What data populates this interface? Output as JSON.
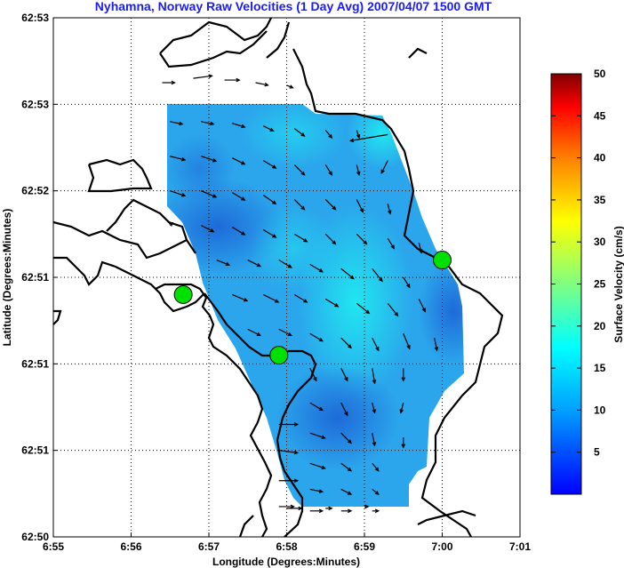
{
  "chart_data": {
    "type": "heatmap",
    "title": "Nyhamna, Norway Raw Velocities (1 Day Avg) 2007/04/07 1500 GMT",
    "xlabel": "Longitude (Degrees:Minutes)",
    "ylabel": "Latitude (Degrees:Minutes)",
    "x_ticks": [
      "6:55",
      "6:56",
      "6:57",
      "6:58",
      "6:59",
      "7:00",
      "7:01"
    ],
    "y_ticks": [
      "62:53",
      "62:53",
      "62:52",
      "62:51",
      "62:51",
      "62:51",
      "62:50"
    ],
    "xlim": [
      0,
      6
    ],
    "ylim": [
      0,
      6
    ],
    "grid": true,
    "colorbar": {
      "label": "Surface Velocity (cm/s)",
      "ticks": [
        5,
        10,
        15,
        20,
        25,
        30,
        35,
        40,
        45,
        50
      ],
      "range": [
        0,
        50
      ],
      "colormap": "jet"
    },
    "site_markers": [
      {
        "x": 1.67,
        "y": 2.8
      },
      {
        "x": 2.9,
        "y": 2.1
      },
      {
        "x": 5.0,
        "y": 3.2
      }
    ],
    "vectors": [
      {
        "x": 1.4,
        "y": 5.25,
        "u": 0.1,
        "v": 0
      },
      {
        "x": 1.8,
        "y": 5.3,
        "u": 0.15,
        "v": 0.02
      },
      {
        "x": 2.2,
        "y": 5.28,
        "u": 0.12,
        "v": 0
      },
      {
        "x": 2.6,
        "y": 5.25,
        "u": 0.1,
        "v": -0.02
      },
      {
        "x": 3.0,
        "y": 5.22,
        "u": 0.05,
        "v": -0.02
      },
      {
        "x": 1.5,
        "y": 4.8,
        "u": 0.1,
        "v": -0.02
      },
      {
        "x": 1.9,
        "y": 4.8,
        "u": 0.1,
        "v": -0.02
      },
      {
        "x": 2.3,
        "y": 4.78,
        "u": 0.1,
        "v": -0.03
      },
      {
        "x": 2.7,
        "y": 4.75,
        "u": 0.08,
        "v": -0.04
      },
      {
        "x": 3.1,
        "y": 4.72,
        "u": 0.08,
        "v": -0.06
      },
      {
        "x": 3.5,
        "y": 4.7,
        "u": 0.05,
        "v": -0.06
      },
      {
        "x": 3.9,
        "y": 4.7,
        "u": 0.02,
        "v": -0.06
      },
      {
        "x": 4.3,
        "y": 4.65,
        "u": -0.3,
        "v": -0.05
      },
      {
        "x": 1.5,
        "y": 4.4,
        "u": 0.12,
        "v": -0.03
      },
      {
        "x": 1.9,
        "y": 4.4,
        "u": 0.12,
        "v": -0.04
      },
      {
        "x": 2.3,
        "y": 4.38,
        "u": 0.1,
        "v": -0.05
      },
      {
        "x": 2.7,
        "y": 4.35,
        "u": 0.1,
        "v": -0.06
      },
      {
        "x": 3.1,
        "y": 4.3,
        "u": 0.08,
        "v": -0.08
      },
      {
        "x": 3.5,
        "y": 4.3,
        "u": 0.05,
        "v": -0.08
      },
      {
        "x": 3.9,
        "y": 4.3,
        "u": 0.02,
        "v": -0.08
      },
      {
        "x": 4.3,
        "y": 4.35,
        "u": -0.05,
        "v": -0.1
      },
      {
        "x": 1.5,
        "y": 4.0,
        "u": 0.12,
        "v": -0.04
      },
      {
        "x": 1.9,
        "y": 4.0,
        "u": 0.12,
        "v": -0.05
      },
      {
        "x": 2.3,
        "y": 3.98,
        "u": 0.1,
        "v": -0.06
      },
      {
        "x": 2.7,
        "y": 3.95,
        "u": 0.1,
        "v": -0.07
      },
      {
        "x": 3.1,
        "y": 3.9,
        "u": 0.08,
        "v": -0.08
      },
      {
        "x": 3.5,
        "y": 3.9,
        "u": 0.08,
        "v": -0.08
      },
      {
        "x": 3.9,
        "y": 3.9,
        "u": 0.05,
        "v": -0.1
      },
      {
        "x": 4.3,
        "y": 3.85,
        "u": 0.02,
        "v": -0.08
      },
      {
        "x": 1.5,
        "y": 3.6,
        "u": 0.02,
        "v": 0.02
      },
      {
        "x": 1.9,
        "y": 3.6,
        "u": 0.1,
        "v": -0.05
      },
      {
        "x": 2.3,
        "y": 3.58,
        "u": 0.1,
        "v": -0.06
      },
      {
        "x": 2.7,
        "y": 3.55,
        "u": 0.1,
        "v": -0.06
      },
      {
        "x": 3.1,
        "y": 3.5,
        "u": 0.1,
        "v": -0.06
      },
      {
        "x": 3.5,
        "y": 3.5,
        "u": 0.08,
        "v": -0.08
      },
      {
        "x": 3.9,
        "y": 3.5,
        "u": 0.08,
        "v": -0.08
      },
      {
        "x": 4.3,
        "y": 3.45,
        "u": 0.05,
        "v": -0.08
      },
      {
        "x": 4.7,
        "y": 3.4,
        "u": 0.02,
        "v": -0.08
      },
      {
        "x": 2.1,
        "y": 3.2,
        "u": 0.1,
        "v": -0.04
      },
      {
        "x": 2.5,
        "y": 3.2,
        "u": 0.1,
        "v": -0.05
      },
      {
        "x": 2.9,
        "y": 3.2,
        "u": 0.1,
        "v": -0.06
      },
      {
        "x": 3.3,
        "y": 3.15,
        "u": 0.1,
        "v": -0.06
      },
      {
        "x": 3.7,
        "y": 3.1,
        "u": 0.1,
        "v": -0.08
      },
      {
        "x": 4.1,
        "y": 3.1,
        "u": 0.08,
        "v": -0.1
      },
      {
        "x": 4.5,
        "y": 3.0,
        "u": 0.05,
        "v": -0.08
      },
      {
        "x": 2.3,
        "y": 2.8,
        "u": 0.12,
        "v": -0.05
      },
      {
        "x": 2.7,
        "y": 2.8,
        "u": 0.12,
        "v": -0.06
      },
      {
        "x": 3.1,
        "y": 2.8,
        "u": 0.1,
        "v": -0.06
      },
      {
        "x": 3.5,
        "y": 2.75,
        "u": 0.1,
        "v": -0.06
      },
      {
        "x": 3.9,
        "y": 2.7,
        "u": 0.1,
        "v": -0.08
      },
      {
        "x": 4.3,
        "y": 2.7,
        "u": 0.08,
        "v": -0.1
      },
      {
        "x": 4.7,
        "y": 2.75,
        "u": 0.05,
        "v": -0.1
      },
      {
        "x": 2.5,
        "y": 2.4,
        "u": 0.1,
        "v": -0.05
      },
      {
        "x": 2.9,
        "y": 2.4,
        "u": 0.1,
        "v": -0.05
      },
      {
        "x": 3.3,
        "y": 2.35,
        "u": 0.1,
        "v": -0.06
      },
      {
        "x": 3.7,
        "y": 2.3,
        "u": 0.08,
        "v": -0.08
      },
      {
        "x": 4.1,
        "y": 2.3,
        "u": 0.05,
        "v": -0.1
      },
      {
        "x": 4.5,
        "y": 2.35,
        "u": 0.05,
        "v": -0.12
      },
      {
        "x": 4.9,
        "y": 2.3,
        "u": 0.02,
        "v": -0.1
      },
      {
        "x": 3.3,
        "y": 1.95,
        "u": 0.05,
        "v": -0.1
      },
      {
        "x": 3.7,
        "y": 1.95,
        "u": 0.05,
        "v": -0.1
      },
      {
        "x": 4.1,
        "y": 1.95,
        "u": 0.02,
        "v": -0.12
      },
      {
        "x": 4.5,
        "y": 1.95,
        "u": 0.0,
        "v": -0.1
      },
      {
        "x": 3.3,
        "y": 1.55,
        "u": 0.1,
        "v": -0.06
      },
      {
        "x": 3.7,
        "y": 1.55,
        "u": 0.05,
        "v": -0.1
      },
      {
        "x": 4.1,
        "y": 1.55,
        "u": 0.02,
        "v": -0.08
      },
      {
        "x": 4.5,
        "y": 1.55,
        "u": -0.02,
        "v": -0.08
      },
      {
        "x": 2.9,
        "y": 1.3,
        "u": 0.15,
        "v": 0.0
      },
      {
        "x": 3.3,
        "y": 1.2,
        "u": 0.12,
        "v": -0.04
      },
      {
        "x": 3.7,
        "y": 1.2,
        "u": 0.08,
        "v": -0.08
      },
      {
        "x": 4.1,
        "y": 1.2,
        "u": 0.02,
        "v": -0.1
      },
      {
        "x": 4.5,
        "y": 1.15,
        "u": 0.0,
        "v": -0.08
      },
      {
        "x": 2.9,
        "y": 1.0,
        "u": 0.15,
        "v": -0.02
      },
      {
        "x": 3.3,
        "y": 0.85,
        "u": 0.12,
        "v": -0.04
      },
      {
        "x": 3.7,
        "y": 0.85,
        "u": 0.08,
        "v": -0.06
      },
      {
        "x": 4.1,
        "y": 0.85,
        "u": 0.05,
        "v": -0.06
      },
      {
        "x": 2.9,
        "y": 0.65,
        "u": 0.15,
        "v": 0.0
      },
      {
        "x": 3.3,
        "y": 0.55,
        "u": 0.1,
        "v": -0.02
      },
      {
        "x": 3.7,
        "y": 0.55,
        "u": 0.08,
        "v": -0.04
      },
      {
        "x": 4.1,
        "y": 0.55,
        "u": 0.05,
        "v": -0.04
      },
      {
        "x": 2.9,
        "y": 0.35,
        "u": 0.12,
        "v": 0.0
      },
      {
        "x": 3.3,
        "y": 0.3,
        "u": 0.1,
        "v": 0.0
      },
      {
        "x": 3.7,
        "y": 0.3,
        "u": 0.08,
        "v": 0.0
      },
      {
        "x": 4.1,
        "y": 0.3,
        "u": 0.05,
        "v": 0.0
      },
      {
        "x": 3.0,
        "y": 0.33,
        "u": 0.12,
        "v": 0.0
      },
      {
        "x": 3.5,
        "y": 0.33,
        "u": 0.05,
        "v": 0.0
      },
      {
        "x": 4.0,
        "y": 0.35,
        "u": 0.03,
        "v": 0.0
      }
    ]
  }
}
